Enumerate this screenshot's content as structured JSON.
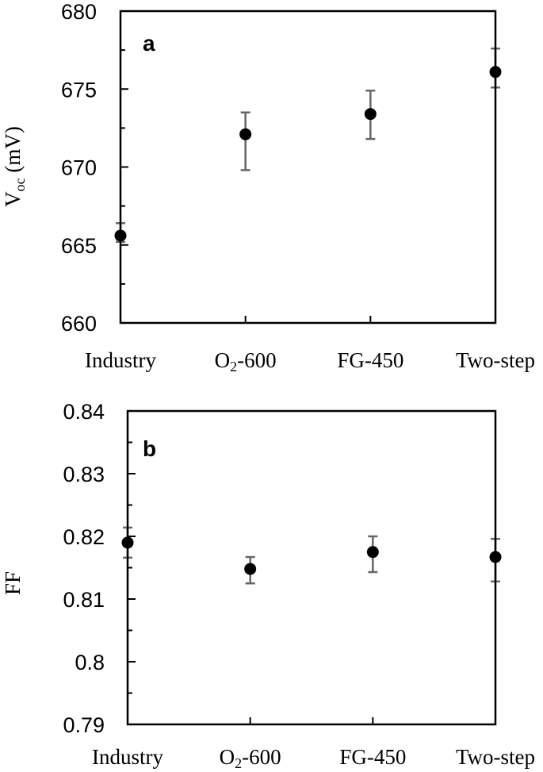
{
  "chart_data": [
    {
      "type": "scatter",
      "panel": "a",
      "title": "",
      "xlabel": "",
      "ylabel": "Voc (mV)",
      "ylabel_main": "V",
      "ylabel_sub": "oc",
      "ylabel_unit": " (mV)",
      "categories": [
        "Industry",
        "O2-600",
        "FG-450",
        "Two-step"
      ],
      "values": [
        665.6,
        672.1,
        673.4,
        676.1
      ],
      "error_low": [
        665.2,
        669.8,
        671.8,
        675.1
      ],
      "error_high": [
        666.4,
        673.5,
        674.9,
        677.6
      ],
      "ylim": [
        660,
        680
      ],
      "yticks": [
        660,
        665,
        670,
        675,
        680
      ],
      "ytick_labels": [
        "660",
        "665",
        "670",
        "675",
        "680"
      ],
      "minor_ticks": [
        662.5,
        667.5,
        672.5,
        677.5
      ],
      "grid": false,
      "legend": null
    },
    {
      "type": "scatter",
      "panel": "b",
      "title": "",
      "xlabel": "",
      "ylabel": "FF",
      "categories": [
        "Industry",
        "O2-600",
        "FG-450",
        "Two-step"
      ],
      "values": [
        0.819,
        0.8148,
        0.8175,
        0.8167
      ],
      "error_low": [
        0.8166,
        0.8125,
        0.8143,
        0.8128
      ],
      "error_high": [
        0.8214,
        0.8167,
        0.82,
        0.8196
      ],
      "ylim": [
        0.79,
        0.84
      ],
      "yticks": [
        0.79,
        0.8,
        0.81,
        0.82,
        0.83,
        0.84
      ],
      "ytick_labels": [
        "0.79",
        "0.8",
        "0.81",
        "0.82",
        "0.83",
        "0.84"
      ],
      "minor_ticks": [
        0.795,
        0.805,
        0.815,
        0.825,
        0.835
      ],
      "grid": false,
      "legend": null
    }
  ],
  "panels": [
    {
      "letter": "a",
      "ylabel_main": "V",
      "ylabel_sub": "oc",
      "ylabel_unit": " (mV)",
      "categories": [
        {
          "main": "Industry",
          "sub": "",
          "rest": ""
        },
        {
          "main": "O",
          "sub": "2",
          "rest": "-600"
        },
        {
          "main": "FG-450",
          "sub": "",
          "rest": ""
        },
        {
          "main": "Two-step",
          "sub": "",
          "rest": ""
        }
      ]
    },
    {
      "letter": "b",
      "ylabel": "FF",
      "categories": [
        {
          "main": "Industry",
          "sub": "",
          "rest": ""
        },
        {
          "main": "O",
          "sub": "2",
          "rest": "-600"
        },
        {
          "main": "FG-450",
          "sub": "",
          "rest": ""
        },
        {
          "main": "Two-step",
          "sub": "",
          "rest": ""
        }
      ]
    }
  ],
  "colors": {
    "axis": "#000000",
    "marker": "#000000",
    "error_bar": "#666666"
  }
}
